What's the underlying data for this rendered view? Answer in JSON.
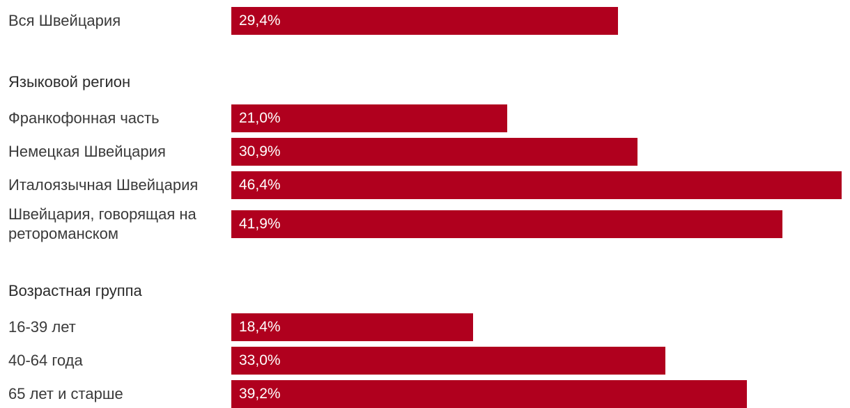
{
  "colors": {
    "bar": "#b0001e",
    "label_text": "#3a3a3a",
    "value_text": "#ffffff"
  },
  "chart_data": {
    "type": "bar",
    "orientation": "horizontal",
    "xlim": [
      0,
      46.4
    ],
    "grid": false,
    "sections": [
      {
        "header": "",
        "rows": [
          {
            "category": "Вся Швейцария",
            "value": 29.4,
            "label": "29,4%"
          }
        ]
      },
      {
        "header": "Языковой регион",
        "rows": [
          {
            "category": "Франкофонная часть",
            "value": 21.0,
            "label": "21,0%"
          },
          {
            "category": "Немецкая Швейцария",
            "value": 30.9,
            "label": "30,9%"
          },
          {
            "category": "Италоязычная Швейцария",
            "value": 46.4,
            "label": "46,4%"
          },
          {
            "category": "Швейцария, говорящая на ретороманском",
            "value": 41.9,
            "label": "41,9%"
          }
        ]
      },
      {
        "header": "Возрастная группа",
        "rows": [
          {
            "category": "16-39 лет",
            "value": 18.4,
            "label": "18,4%"
          },
          {
            "category": "40-64 года",
            "value": 33.0,
            "label": "33,0%"
          },
          {
            "category": "65 лет и старше",
            "value": 39.2,
            "label": "39,2%"
          }
        ]
      }
    ]
  }
}
